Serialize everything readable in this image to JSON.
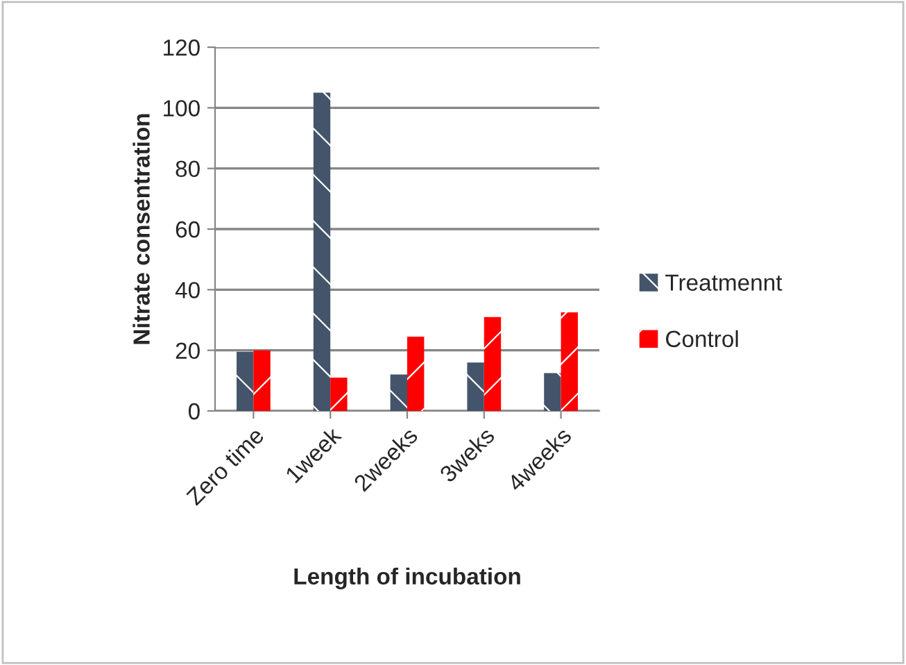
{
  "chart_data": {
    "type": "bar",
    "xlabel": "Length of incubation",
    "ylabel": "Nitrate consentration",
    "categories": [
      "Zero time",
      "1week",
      "2weeks",
      "3weks",
      "4weeks"
    ],
    "series": [
      {
        "name": "Treatmennt",
        "color": "#44546a",
        "values": [
          19.5,
          105,
          12,
          16,
          12.5
        ]
      },
      {
        "name": "Control",
        "color": "#ff0000",
        "values": [
          20,
          11,
          24.5,
          31,
          32.5
        ]
      }
    ],
    "ylim": [
      0,
      120
    ],
    "yticks": [
      0,
      20,
      40,
      60,
      80,
      100,
      120
    ],
    "grid": "y",
    "legend": "right"
  }
}
